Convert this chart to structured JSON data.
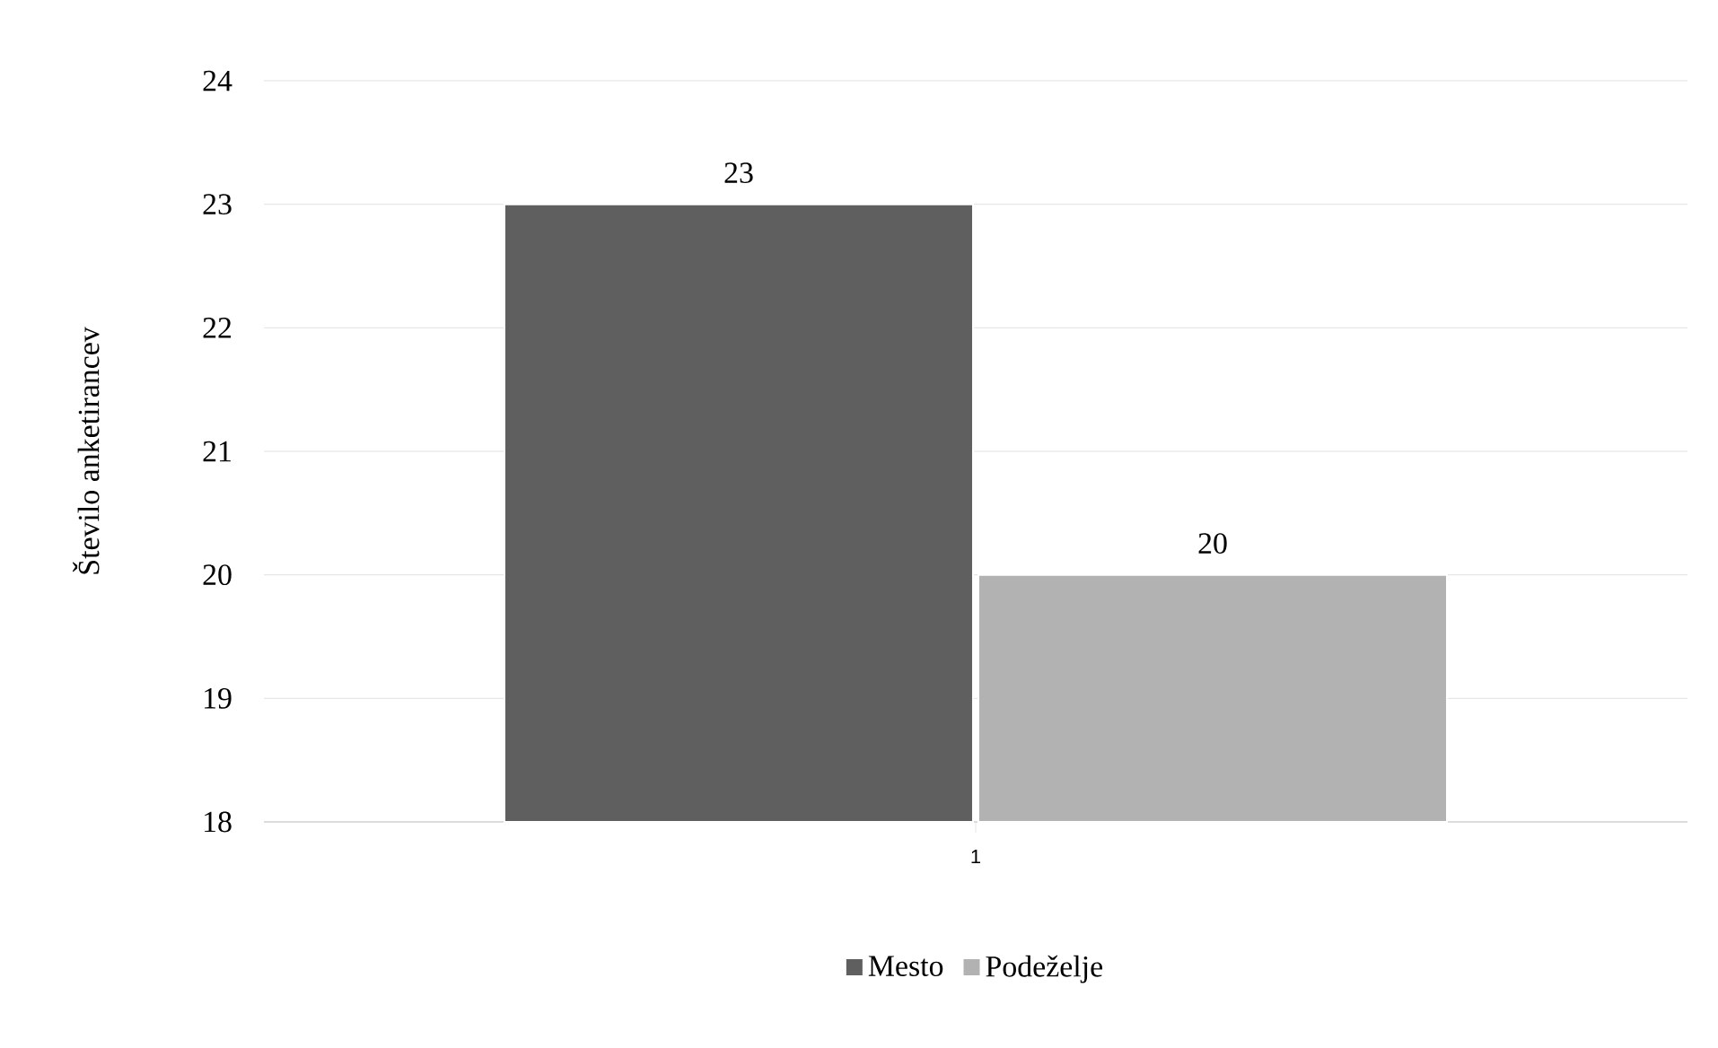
{
  "chart_data": {
    "type": "bar",
    "ylabel": "Število anketirancev",
    "categories": [
      "1"
    ],
    "series": [
      {
        "name": "Mesto",
        "color": "#5f5f5f",
        "values": [
          23
        ]
      },
      {
        "name": "Podeželje",
        "color": "#b2b2b2",
        "values": [
          20
        ]
      }
    ],
    "ylim": [
      18,
      24
    ],
    "yticks": [
      18,
      19,
      20,
      21,
      22,
      23,
      24
    ],
    "grid": "y",
    "legend": "bottom",
    "data_labels": true
  }
}
